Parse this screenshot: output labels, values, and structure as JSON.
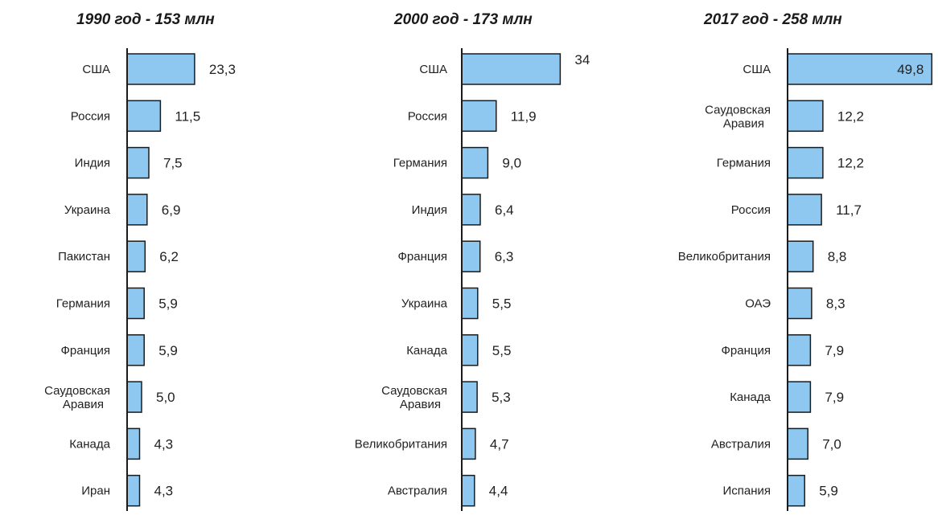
{
  "colors": {
    "bar_fill": "#8ec8f0",
    "bar_stroke": "#1b1b1b",
    "axis": "#1b1b1b",
    "text": "#222222"
  },
  "chart_data": [
    {
      "type": "bar",
      "orientation": "horizontal",
      "title": "1990 год - 153 млн",
      "categories": [
        "США",
        "Россия",
        "Индия",
        "Украина",
        "Пакистан",
        "Германия",
        "Франция",
        "Саудовская Аравия",
        "Канада",
        "Иран"
      ],
      "values": [
        23.3,
        11.5,
        7.5,
        6.9,
        6.2,
        5.9,
        5.9,
        5.0,
        4.3,
        4.3
      ],
      "value_labels": [
        "23,3",
        "11,5",
        "7,5",
        "6,9",
        "6,2",
        "5,9",
        "5,9",
        "5,0",
        "4,3",
        "4,3"
      ]
    },
    {
      "type": "bar",
      "orientation": "horizontal",
      "title": "2000 год - 173 млн",
      "categories": [
        "США",
        "Россия",
        "Германия",
        "Индия",
        "Франция",
        "Украина",
        "Канада",
        "Саудовская Аравия",
        "Великобритания",
        "Австралия"
      ],
      "values": [
        34,
        11.9,
        9.0,
        6.4,
        6.3,
        5.5,
        5.5,
        5.3,
        4.7,
        4.4
      ],
      "value_labels": [
        "34",
        "11,9",
        "9,0",
        "6,4",
        "6,3",
        "5,5",
        "5,5",
        "5,3",
        "4,7",
        "4,4"
      ]
    },
    {
      "type": "bar",
      "orientation": "horizontal",
      "title": "2017 год - 258 млн",
      "categories": [
        "США",
        "Саудовская Аравия",
        "Германия",
        "Россия",
        "Великобритания",
        "ОАЭ",
        "Франция",
        "Канада",
        "Австралия",
        "Испания"
      ],
      "values": [
        49.8,
        12.2,
        12.2,
        11.7,
        8.8,
        8.3,
        7.9,
        7.9,
        7.0,
        5.9
      ],
      "value_labels": [
        "49,8",
        "12,2",
        "12,2",
        "11,7",
        "8,8",
        "8,3",
        "7,9",
        "7,9",
        "7,0",
        "5,9"
      ]
    }
  ]
}
